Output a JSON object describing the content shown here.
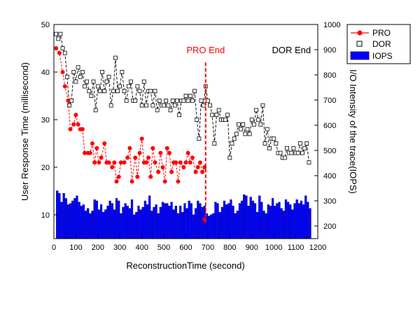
{
  "chart_data": {
    "type": "line",
    "title": "",
    "xlabel": "ReconstructionTime (second)",
    "ylabel": "User Response Time (millisecond)",
    "ylabel_right": "I/O Intensity of the trace(IOPS)",
    "xlim": [
      0,
      1200
    ],
    "ylim": [
      5,
      50
    ],
    "ylim_right": [
      150,
      1000
    ],
    "x_ticks": [
      0,
      100,
      200,
      300,
      400,
      500,
      600,
      700,
      800,
      900,
      1000,
      1100,
      1200
    ],
    "x_tick_labels": [
      "0",
      "100",
      "200",
      "300",
      "400",
      "500",
      "600",
      "700",
      "800",
      "900",
      "1000",
      "1100",
      "1200"
    ],
    "y_ticks": [
      10,
      20,
      30,
      40,
      50
    ],
    "y_tick_labels": [
      "10",
      "20",
      "30",
      "40",
      "50"
    ],
    "y_ticks_right": [
      200,
      300,
      400,
      500,
      600,
      700,
      800,
      900,
      1000
    ],
    "y_tick_labels_right": [
      "200",
      "300",
      "400",
      "500",
      "600",
      "700",
      "800",
      "900",
      "1000"
    ],
    "grid": false,
    "legend_position": "top-right",
    "legend": [
      "PRO",
      "DOR",
      "IOPS"
    ],
    "annotations": [
      {
        "text": "PRO End",
        "x": 690,
        "y": 44,
        "color": "#ff0000"
      },
      {
        "text": "DOR End",
        "x": 1080,
        "y": 44,
        "color": "#000000"
      }
    ],
    "vline": {
      "x": 690,
      "y_from": 8,
      "y_to": 42,
      "color": "#ff0000",
      "style": "dashed"
    },
    "series": [
      {
        "name": "PRO",
        "color": "#ff0000",
        "style": "line-dashed-circle-markers",
        "axis": "left",
        "x": [
          10,
          25,
          40,
          50,
          65,
          75,
          90,
          100,
          110,
          120,
          130,
          140,
          155,
          165,
          175,
          185,
          195,
          205,
          215,
          230,
          240,
          250,
          265,
          275,
          285,
          295,
          305,
          320,
          335,
          345,
          355,
          370,
          380,
          390,
          400,
          410,
          420,
          430,
          440,
          450,
          460,
          475,
          485,
          495,
          505,
          515,
          525,
          535,
          545,
          555,
          565,
          575,
          590,
          600,
          610,
          620,
          630,
          645,
          655,
          665,
          675,
          685
        ],
        "values": [
          45,
          44,
          40,
          37,
          34,
          28,
          29,
          31,
          29,
          28,
          28,
          23,
          23,
          23,
          25,
          21,
          24,
          21,
          22,
          25,
          21,
          21,
          20,
          21,
          17,
          18,
          21,
          21,
          22,
          24,
          17,
          22,
          18,
          23,
          26,
          21,
          21,
          22,
          18,
          24,
          21,
          19,
          23,
          20,
          17,
          24,
          23,
          19,
          21,
          21,
          17,
          21,
          20,
          21,
          23,
          21,
          22,
          19,
          20,
          21,
          19,
          20
        ],
        "end_point": {
          "x": 685,
          "y": 9
        }
      },
      {
        "name": "DOR",
        "color": "#000000",
        "style": "line-dashed-open-square-markers",
        "axis": "left",
        "x": [
          10,
          20,
          30,
          40,
          50,
          60,
          70,
          80,
          90,
          100,
          110,
          120,
          130,
          140,
          150,
          160,
          170,
          180,
          190,
          200,
          210,
          220,
          230,
          240,
          250,
          260,
          270,
          280,
          290,
          300,
          310,
          320,
          330,
          340,
          350,
          360,
          370,
          380,
          390,
          400,
          410,
          420,
          430,
          440,
          450,
          460,
          470,
          480,
          490,
          500,
          510,
          520,
          530,
          540,
          550,
          560,
          570,
          580,
          590,
          600,
          610,
          620,
          630,
          640,
          650,
          660,
          670,
          680,
          690,
          700,
          710,
          720,
          730,
          740,
          750,
          760,
          770,
          780,
          790,
          800,
          810,
          820,
          830,
          840,
          850,
          860,
          870,
          880,
          890,
          900,
          910,
          920,
          930,
          940,
          950,
          960,
          970,
          980,
          990,
          1000,
          1010,
          1020,
          1030,
          1040,
          1050,
          1060,
          1070,
          1080,
          1090,
          1100,
          1110,
          1120,
          1130,
          1140,
          1150,
          1160
        ],
        "values": [
          48,
          47,
          48,
          45,
          44,
          39,
          33,
          34,
          40,
          38,
          41,
          39,
          40,
          37,
          38,
          36,
          35,
          38,
          32,
          37,
          36,
          40,
          36,
          38,
          39,
          33,
          36,
          43,
          36,
          37,
          40,
          36,
          34,
          37,
          38,
          34,
          34,
          37,
          36,
          33,
          38,
          33,
          36,
          36,
          33,
          36,
          32,
          34,
          33,
          33,
          34,
          33,
          32,
          34,
          33,
          34,
          31,
          34,
          34,
          35,
          34,
          35,
          34,
          36,
          30,
          26,
          34,
          33,
          37,
          34,
          33,
          31,
          25,
          31,
          32,
          30,
          30,
          30,
          31,
          22,
          25,
          26,
          27,
          29,
          28,
          29,
          27,
          28,
          27,
          30,
          29,
          32,
          30,
          29,
          33,
          25,
          28,
          24,
          26,
          26,
          25,
          23,
          23,
          22,
          22,
          24,
          23,
          23,
          24,
          23,
          23,
          25,
          23,
          24,
          25,
          21
        ]
      },
      {
        "name": "IOPS",
        "color": "#0000ff",
        "style": "bar",
        "axis": "right",
        "x": [
          15,
          25,
          35,
          45,
          55,
          65,
          75,
          85,
          95,
          105,
          115,
          125,
          135,
          145,
          155,
          165,
          175,
          185,
          195,
          205,
          215,
          225,
          235,
          245,
          255,
          265,
          275,
          285,
          295,
          305,
          315,
          325,
          335,
          345,
          355,
          365,
          375,
          385,
          395,
          405,
          415,
          425,
          435,
          445,
          455,
          465,
          475,
          485,
          495,
          505,
          515,
          525,
          535,
          545,
          555,
          565,
          575,
          585,
          595,
          605,
          615,
          625,
          635,
          645,
          655,
          665,
          675,
          685,
          695,
          705,
          715,
          725,
          735,
          745,
          755,
          765,
          775,
          785,
          795,
          805,
          815,
          825,
          835,
          845,
          855,
          865,
          875,
          885,
          895,
          905,
          915,
          925,
          935,
          945,
          955,
          965,
          975,
          985,
          995,
          1005,
          1015,
          1025,
          1035,
          1045,
          1055,
          1065,
          1075,
          1085,
          1095,
          1105,
          1115,
          1125,
          1135,
          1145,
          1155,
          1165
        ],
        "values": [
          340,
          330,
          295,
          330,
          310,
          285,
          290,
          300,
          310,
          320,
          295,
          280,
          285,
          260,
          270,
          250,
          260,
          305,
          300,
          265,
          285,
          255,
          265,
          280,
          300,
          290,
          265,
          310,
          300,
          250,
          275,
          290,
          280,
          270,
          305,
          245,
          255,
          280,
          265,
          275,
          300,
          285,
          320,
          260,
          275,
          285,
          250,
          275,
          295,
          290,
          290,
          280,
          295,
          265,
          280,
          250,
          280,
          255,
          290,
          270,
          300,
          290,
          245,
          270,
          300,
          290,
          275,
          280,
          250,
          240,
          245,
          250,
          295,
          290,
          255,
          275,
          300,
          285,
          290,
          305,
          280,
          250,
          260,
          290,
          300,
          325,
          320,
          280,
          315,
          300,
          290,
          255,
          320,
          295,
          260,
          250,
          285,
          280,
          310,
          280,
          290,
          295,
          270,
          260,
          305,
          295,
          285,
          265,
          290,
          305,
          290,
          300,
          285,
          320,
          295,
          270
        ]
      }
    ]
  }
}
